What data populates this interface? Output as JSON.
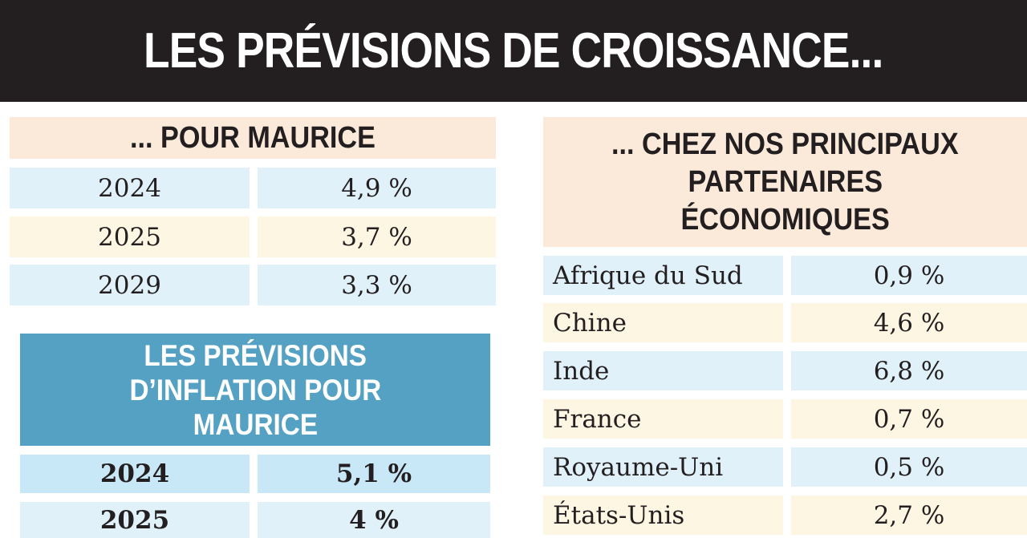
{
  "title": "LES PRÉVISIONS DE CROISSANCE...",
  "mauritius_growth": {
    "header": "... POUR MAURICE",
    "rows": [
      {
        "year": "2024",
        "value": "4,9 %"
      },
      {
        "year": "2025",
        "value": "3,7 %"
      },
      {
        "year": "2029",
        "value": "3,3 %"
      }
    ]
  },
  "mauritius_inflation": {
    "header_lines": [
      "LES PRÉVISIONS",
      "D’INFLATION POUR",
      "MAURICE"
    ],
    "rows": [
      {
        "year": "2024",
        "value": "5,1 %"
      },
      {
        "year": "2025",
        "value": "4 %"
      }
    ]
  },
  "partners_growth": {
    "header_lines": [
      "... CHEZ NOS PRINCIPAUX",
      "PARTENAIRES",
      "ÉCONOMIQUES"
    ],
    "rows": [
      {
        "country": "Afrique du Sud",
        "value": "0,9 %"
      },
      {
        "country": "Chine",
        "value": "4,6 %"
      },
      {
        "country": "Inde",
        "value": "6,8 %"
      },
      {
        "country": "France",
        "value": "0,7 %"
      },
      {
        "country": "Royaume-Uni",
        "value": "0,5 %"
      },
      {
        "country": "États-Unis",
        "value": "2,7 %"
      }
    ]
  },
  "colors": {
    "banner": "#231f20",
    "peach_header": "#fbe9da",
    "blue_header": "#55a1c4",
    "row_blue": "#e1f1fa",
    "row_cream": "#fdf6e3"
  }
}
